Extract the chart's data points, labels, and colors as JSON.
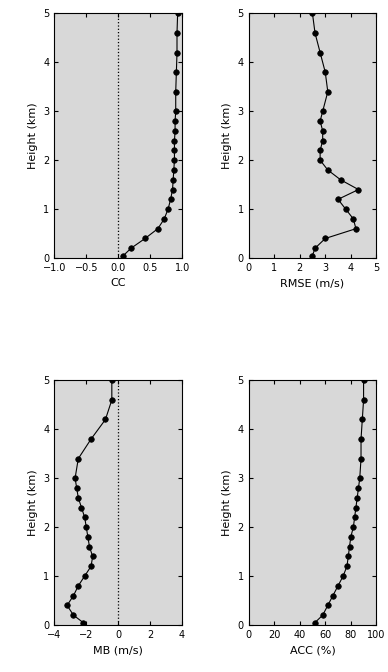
{
  "heights": [
    0.05,
    0.2,
    0.4,
    0.6,
    0.8,
    1.0,
    1.2,
    1.4,
    1.6,
    1.8,
    2.0,
    2.2,
    2.4,
    2.6,
    2.8,
    3.0,
    3.4,
    3.8,
    4.2,
    4.6,
    5.0
  ],
  "cc": [
    0.08,
    0.2,
    0.42,
    0.62,
    0.72,
    0.78,
    0.82,
    0.85,
    0.86,
    0.87,
    0.88,
    0.88,
    0.88,
    0.89,
    0.89,
    0.9,
    0.9,
    0.91,
    0.92,
    0.92,
    0.93
  ],
  "rmse": [
    2.5,
    2.6,
    3.0,
    4.2,
    4.1,
    3.8,
    3.5,
    4.3,
    3.6,
    3.1,
    2.8,
    2.8,
    2.9,
    2.9,
    2.8,
    2.9,
    3.1,
    3.0,
    2.8,
    2.6,
    2.5
  ],
  "mb": [
    -2.2,
    -2.8,
    -3.2,
    -2.8,
    -2.5,
    -2.1,
    -1.7,
    -1.6,
    -1.8,
    -1.9,
    -2.0,
    -2.1,
    -2.3,
    -2.5,
    -2.6,
    -2.7,
    -2.5,
    -1.7,
    -0.8,
    -0.4,
    -0.4
  ],
  "acc": [
    52,
    58,
    62,
    66,
    70,
    74,
    77,
    78,
    79,
    80,
    82,
    83,
    84,
    85,
    86,
    87,
    88,
    88,
    89,
    90,
    90
  ],
  "ylim": [
    0,
    5
  ],
  "yticks": [
    0,
    1,
    2,
    3,
    4,
    5
  ],
  "cc_xlim": [
    -1.0,
    1.0
  ],
  "cc_xticks": [
    -1.0,
    -0.5,
    0.0,
    0.5,
    1.0
  ],
  "rmse_xlim": [
    0,
    5
  ],
  "rmse_xticks": [
    0,
    1,
    2,
    3,
    4,
    5
  ],
  "mb_xlim": [
    -4,
    4
  ],
  "mb_xticks": [
    -4,
    -2,
    0,
    2,
    4
  ],
  "acc_xlim": [
    0,
    100
  ],
  "acc_xticks": [
    0,
    20,
    40,
    60,
    80,
    100
  ],
  "cc_xlabel": "CC",
  "rmse_xlabel": "RMSE (m/s)",
  "mb_xlabel": "MB (m/s)",
  "acc_xlabel": "ACC (%)",
  "ylabel": "Height (km)",
  "plot_bg_color": "#d8d8d8",
  "line_color": "black",
  "marker_color": "black",
  "marker_size": 4,
  "linewidth": 0.8,
  "tick_labelsize": 7,
  "xlabel_fontsize": 8,
  "ylabel_fontsize": 8
}
